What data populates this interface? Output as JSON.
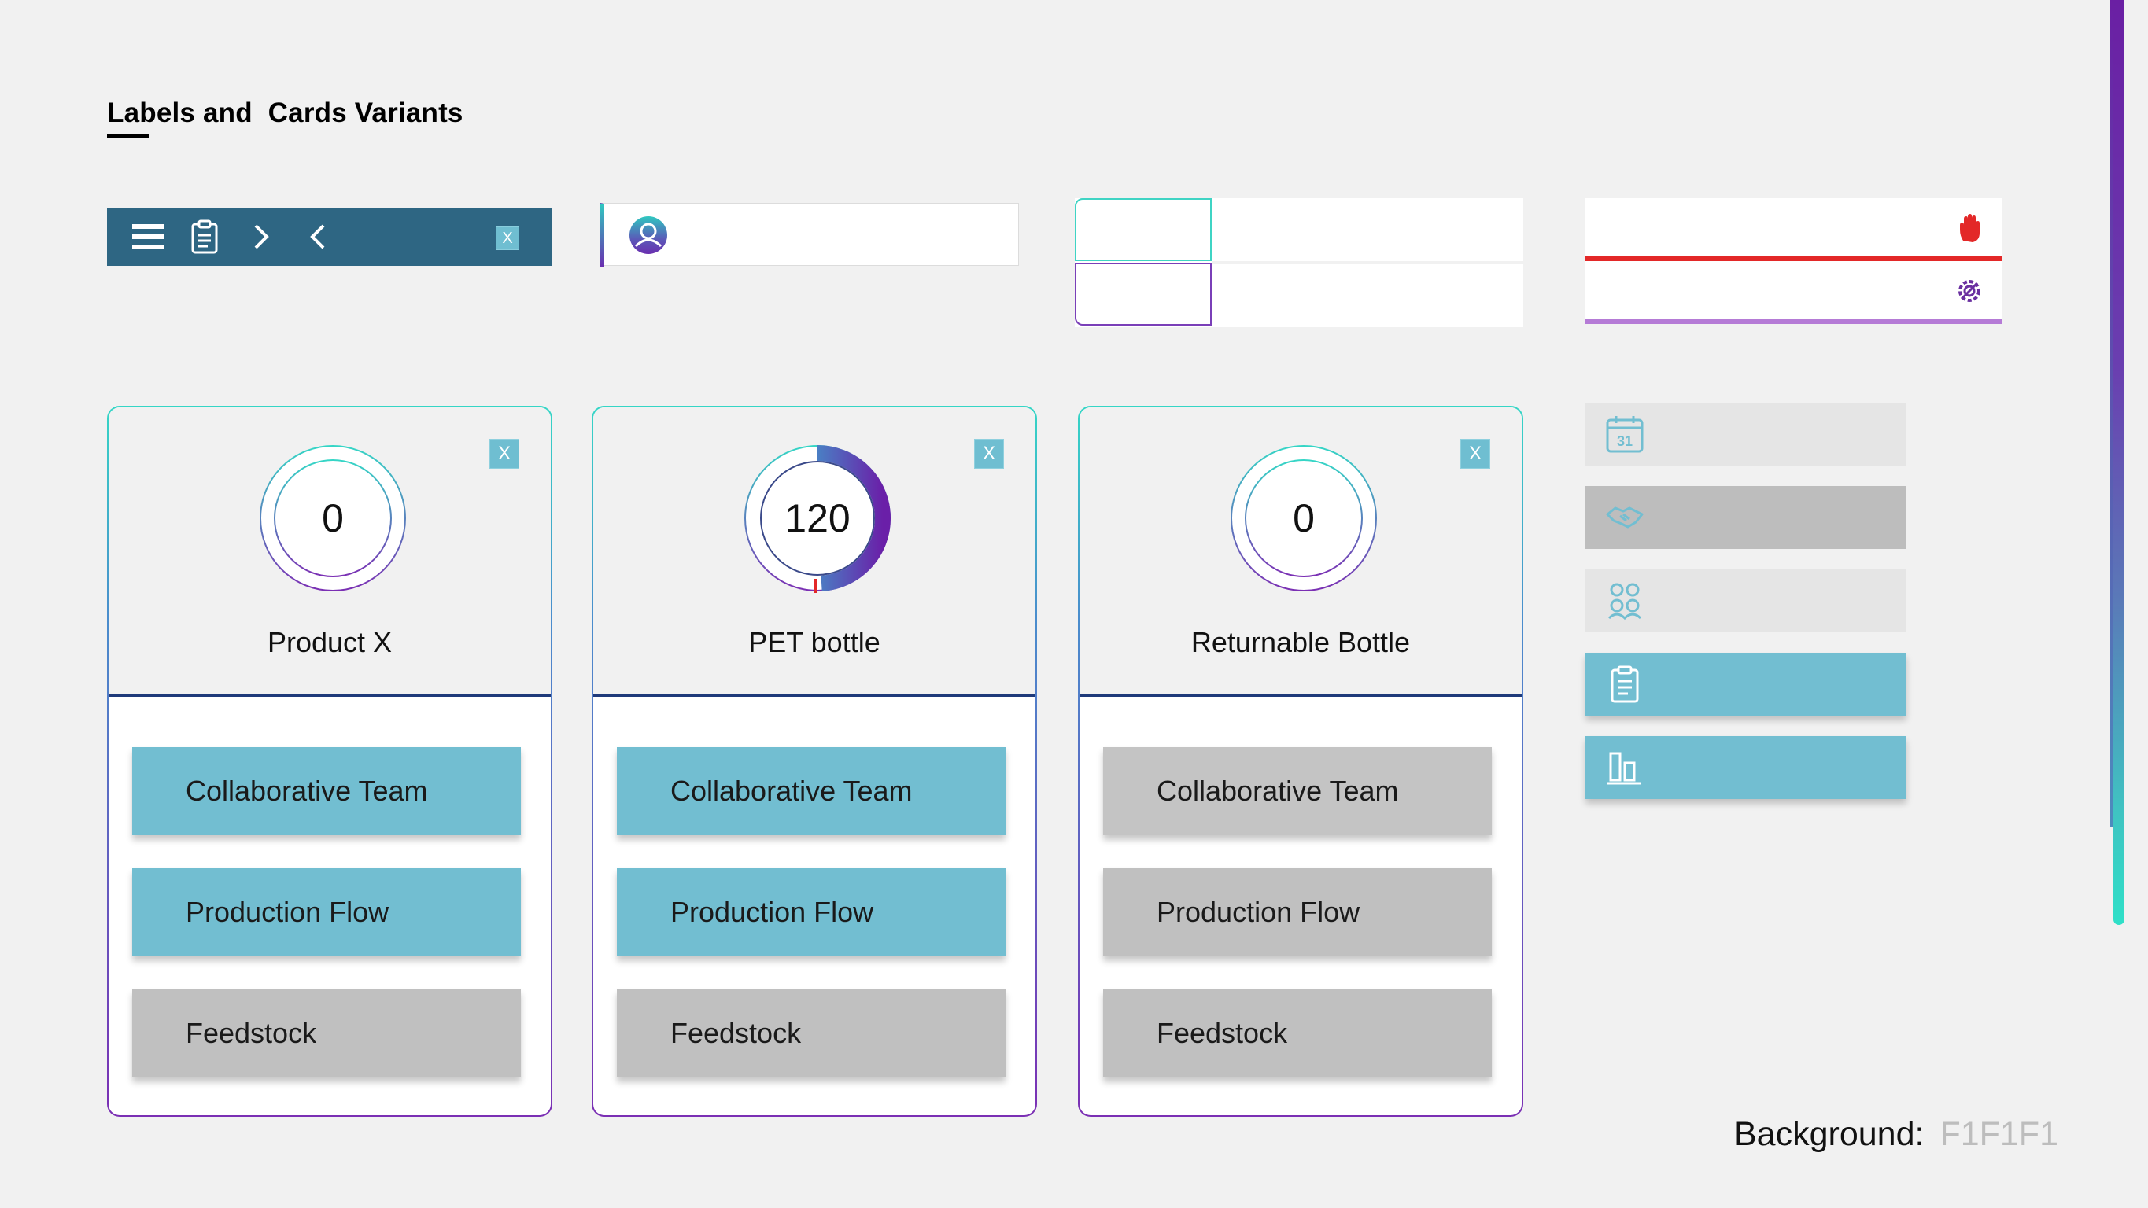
{
  "page": {
    "title": "Labels and  Cards Variants",
    "background_label": "Background:",
    "background_value": "F1F1F1"
  },
  "toolbar": {
    "icons": [
      "menu-icon",
      "clipboard-icon",
      "chevron-right-icon",
      "chevron-left-icon"
    ],
    "close_label": "X",
    "color": "#2E6683"
  },
  "user_label": {
    "icon": "user-avatar-icon"
  },
  "alerts": [
    {
      "icon": "hand-stop-icon",
      "color": "#E32828"
    },
    {
      "icon": "gear-wrench-icon",
      "color": "#B57BD6"
    }
  ],
  "cards": [
    {
      "value": "0",
      "progress": 0,
      "name": "Product X",
      "close_label": "X",
      "buttons": [
        {
          "label": "Collaborative Team",
          "state": "active"
        },
        {
          "label": "Production Flow",
          "state": "active"
        },
        {
          "label": "Feedstock",
          "state": "inactive"
        }
      ]
    },
    {
      "value": "120",
      "progress": 0.49,
      "name": "PET bottle",
      "close_label": "X",
      "buttons": [
        {
          "label": "Collaborative Team",
          "state": "active"
        },
        {
          "label": "Production Flow",
          "state": "active"
        },
        {
          "label": "Feedstock",
          "state": "inactive"
        }
      ]
    },
    {
      "value": "0",
      "progress": 0,
      "name": "Returnable Bottle",
      "close_label": "X",
      "buttons": [
        {
          "label": "Collaborative Team",
          "state": "inactive"
        },
        {
          "label": "Production Flow",
          "state": "inactive"
        },
        {
          "label": "Feedstock",
          "state": "inactive"
        }
      ]
    }
  ],
  "side_menu": [
    {
      "icon": "calendar-icon",
      "calendar_day": "31",
      "state": "light"
    },
    {
      "icon": "handshake-icon",
      "state": "dark"
    },
    {
      "icon": "team-icon",
      "state": "light"
    },
    {
      "icon": "clipboard-icon",
      "state": "active"
    },
    {
      "icon": "bar-chart-icon",
      "state": "active"
    }
  ],
  "colors": {
    "teal": "#72BED1",
    "gray": "#C0C0C0",
    "accent_cyan": "#35D6C6",
    "accent_purple": "#7B2FB4"
  }
}
